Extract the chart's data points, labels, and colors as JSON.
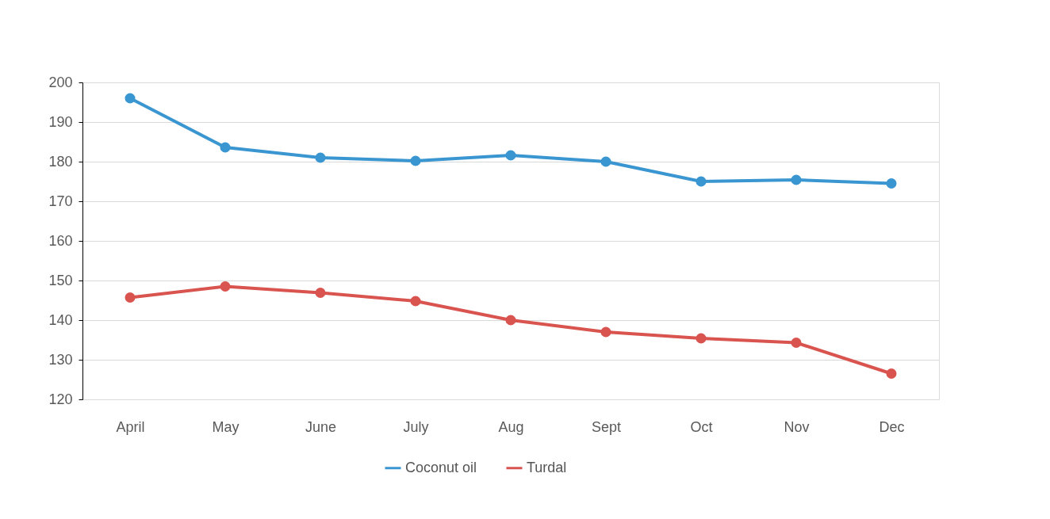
{
  "chart_data": {
    "type": "line",
    "categories": [
      "April",
      "May",
      "June",
      "July",
      "Aug",
      "Sept",
      "Oct",
      "Nov",
      "Dec"
    ],
    "series": [
      {
        "name": "Coconut oil",
        "color": "#3a96d0",
        "values": [
          196.0,
          183.6,
          181.0,
          180.2,
          181.6,
          180.0,
          175.0,
          175.4,
          174.5
        ]
      },
      {
        "name": "Turdal",
        "color": "#d9534f",
        "values": [
          145.7,
          148.5,
          146.9,
          144.8,
          140.0,
          137.0,
          135.4,
          134.3,
          126.5
        ]
      }
    ],
    "ylim": [
      120,
      200
    ],
    "yticks": [
      120,
      130,
      140,
      150,
      160,
      170,
      180,
      190,
      200
    ],
    "grid": "y",
    "legend": "bottom",
    "marker": "circle",
    "line_style": "solid"
  }
}
